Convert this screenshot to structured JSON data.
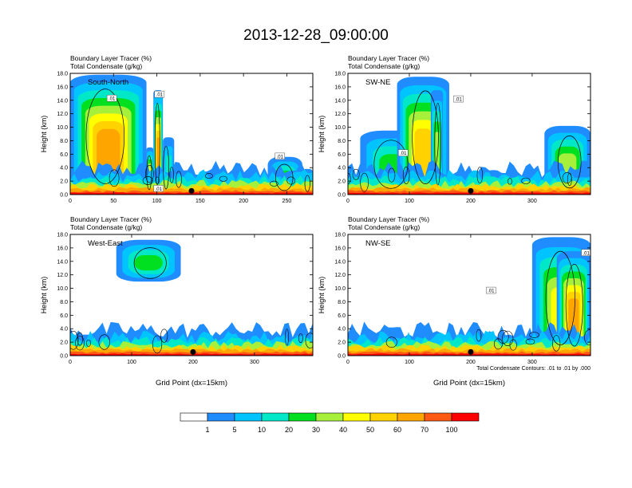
{
  "figure": {
    "title": "2013-12-28_09:00:00",
    "contour_note": "Total Condensate Contours: .01 to .01 by .000"
  },
  "colors": {
    "levels": [
      "#ffffff",
      "#1f8cff",
      "#00c4ff",
      "#00e8c8",
      "#00e020",
      "#a6f03c",
      "#ffff00",
      "#ffd200",
      "#ffa500",
      "#ff5a14",
      "#ff0000"
    ],
    "contour": "#000000",
    "marker": "#000000"
  },
  "chart_data": [
    {
      "type": "heatmap",
      "panel": "South-North",
      "label": "South-North",
      "title_line1": "Boundary Layer Tracer   (%)",
      "title_line2": "Total Condensate   (g/kg)",
      "ylabel": "Height (km)",
      "xlabel": "",
      "xlim": [
        0,
        280
      ],
      "ylim": [
        0,
        18
      ],
      "xticks": [
        0,
        50,
        100,
        150,
        200,
        250
      ],
      "yticks": [
        "0.0",
        "2.0",
        "4.0",
        "6.0",
        "8.0",
        "10.0",
        "12.0",
        "14.0",
        "16.0",
        "18.0"
      ],
      "marker_x": 140,
      "contour_labels": [
        {
          "text": ".01",
          "x": 48,
          "y": 14.3
        },
        {
          "text": ".01",
          "x": 103,
          "y": 14.9
        },
        {
          "text": ".01",
          "x": 242,
          "y": 5.7
        },
        {
          "text": ".01",
          "x": 102,
          "y": 0.9
        }
      ],
      "plumes": [
        {
          "x": [
            0,
            88
          ],
          "top": 17.8,
          "level": 8
        },
        {
          "x": [
            88,
            96
          ],
          "top": 7,
          "level": 6
        },
        {
          "x": [
            96,
            107
          ],
          "top": 15.5,
          "level": 8
        },
        {
          "x": [
            107,
            120
          ],
          "top": 8.5,
          "level": 3
        },
        {
          "x": [
            228,
            268
          ],
          "top": 5.6,
          "level": 4
        },
        {
          "x": [
            268,
            280
          ],
          "top": 3.8,
          "level": 3
        }
      ]
    },
    {
      "type": "heatmap",
      "panel": "SW-NE",
      "label": "SW-NE",
      "title_line1": "Boundary Layer Tracer   (%)",
      "title_line2": "Total Condensate   (g/kg)",
      "ylabel": "Height (km)",
      "xlabel": "",
      "xlim": [
        0,
        395
      ],
      "ylim": [
        0,
        18
      ],
      "xticks": [
        0,
        100,
        200,
        300
      ],
      "yticks": [
        "0.0",
        "2.0",
        "4.0",
        "6.0",
        "8.0",
        "10.0",
        "12.0",
        "14.0",
        "16.0",
        "18.0"
      ],
      "marker_x": 200,
      "contour_labels": [
        {
          "text": ".01",
          "x": 180,
          "y": 14.2
        },
        {
          "text": ".01",
          "x": 90,
          "y": 6.2
        }
      ],
      "plumes": [
        {
          "x": [
            20,
            130
          ],
          "top": 9.5,
          "level": 4
        },
        {
          "x": [
            80,
            165
          ],
          "top": 17.5,
          "level": 7
        },
        {
          "x": [
            135,
            155
          ],
          "top": 15.5,
          "level": 5
        },
        {
          "x": [
            320,
            395
          ],
          "top": 10.2,
          "level": 5
        }
      ]
    },
    {
      "type": "heatmap",
      "panel": "West-East",
      "label": "West-East",
      "title_line1": "Boundary Layer Tracer   (%)",
      "title_line2": "Total Condensate   (g/kg)",
      "ylabel": "Height (km)",
      "xlabel": "Grid Point (dx=15km)",
      "xlim": [
        0,
        395
      ],
      "ylim": [
        0,
        18
      ],
      "xticks": [
        0,
        100,
        200,
        300
      ],
      "yticks": [
        "0.0",
        "2.0",
        "4.0",
        "6.0",
        "8.0",
        "10.0",
        "12.0",
        "14.0",
        "16.0",
        "18.0"
      ],
      "marker_x": 200,
      "contour_labels": [],
      "plumes": [
        {
          "x": [
            75,
            180
          ],
          "top": 17.2,
          "level": 4,
          "bottom": 11
        }
      ]
    },
    {
      "type": "heatmap",
      "panel": "NW-SE",
      "label": "NW-SE",
      "title_line1": "Boundary Layer Tracer   (%)",
      "title_line2": "Total Condensate   (g/kg)",
      "ylabel": "Height (km)",
      "xlabel": "Grid Point (dx=15km)",
      "xlim": [
        0,
        395
      ],
      "ylim": [
        0,
        18
      ],
      "xticks": [
        0,
        100,
        200,
        300
      ],
      "yticks": [
        "0.0",
        "2.0",
        "4.0",
        "6.0",
        "8.0",
        "10.0",
        "12.0",
        "14.0",
        "16.0",
        "18.0"
      ],
      "marker_x": 200,
      "contour_labels": [
        {
          "text": ".01",
          "x": 233,
          "y": 9.7
        },
        {
          "text": ".01",
          "x": 388,
          "y": 15.3
        }
      ],
      "plumes": [
        {
          "x": [
            300,
            395
          ],
          "top": 17.6,
          "level": 6
        },
        {
          "x": [
            340,
            395
          ],
          "top": 15.5,
          "level": 8
        }
      ]
    }
  ],
  "colorbar": {
    "labels": [
      "1",
      "5",
      "10",
      "20",
      "30",
      "40",
      "50",
      "60",
      "70",
      "100"
    ]
  }
}
